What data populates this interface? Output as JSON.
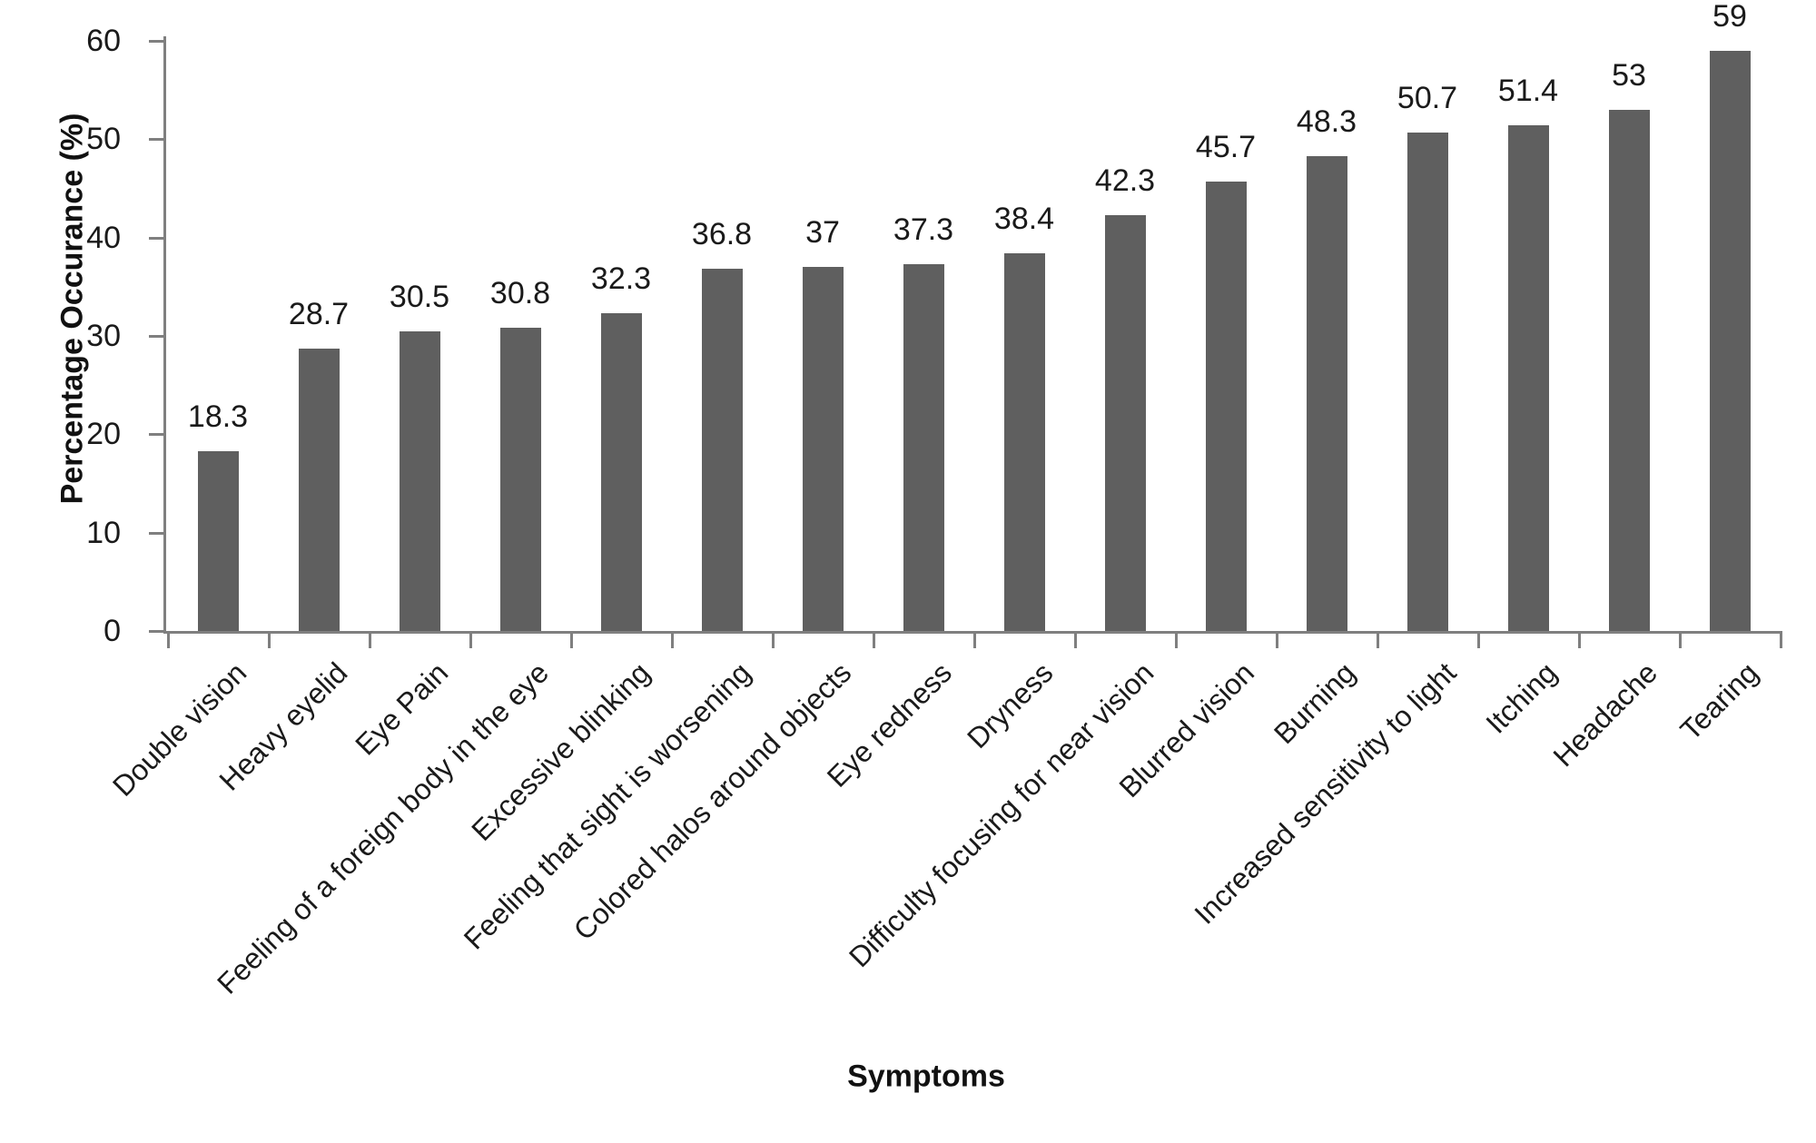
{
  "chart_data": {
    "type": "bar",
    "title": "",
    "xlabel": "Symptoms",
    "ylabel": "Percentage Occurance (%)",
    "ylim": [
      0,
      60
    ],
    "yticks": [
      0,
      10,
      20,
      30,
      40,
      50,
      60
    ],
    "grid": false,
    "legend": false,
    "bar_color": "#5f5f5f",
    "categories": [
      "Double vision",
      "Heavy eyelid",
      "Eye Pain",
      "Feeling of a foreign body in the eye",
      "Excessive blinking",
      "Feeling that sight is worsening",
      "Colored halos around objects",
      "Eye redness",
      "Dryness",
      "Difficulty focusing for near vision",
      "Blurred vision",
      "Burning",
      "Increased sensitivity to light",
      "Itching",
      "Headache",
      "Tearing"
    ],
    "values": [
      18.3,
      28.7,
      30.5,
      30.8,
      32.3,
      36.8,
      37,
      37.3,
      38.4,
      42.3,
      45.7,
      48.3,
      50.7,
      51.4,
      53,
      59
    ]
  },
  "colors": {
    "bar": "#5f5f5f",
    "axis": "#7f7f7f",
    "text": "#1a1a1a"
  }
}
